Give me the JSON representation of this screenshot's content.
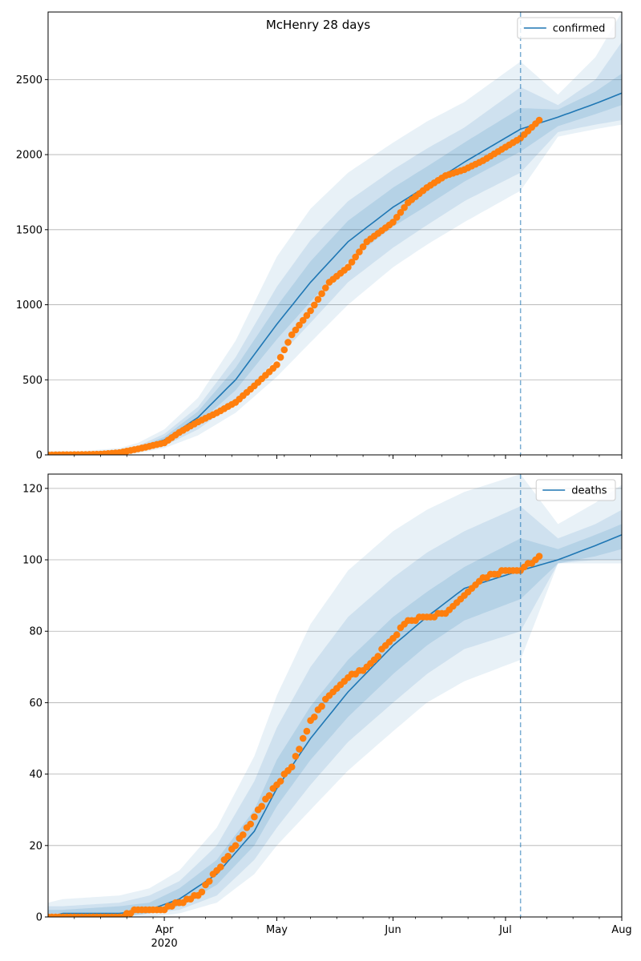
{
  "figure": {
    "title": "McHenry 28 days"
  },
  "chart_data": [
    {
      "type": "line",
      "panel": "top",
      "title": "McHenry 28 days",
      "xlabel": "",
      "ylabel": "",
      "xlim": [
        "2020-03-01",
        "2020-08-01"
      ],
      "ylim": [
        0,
        2950
      ],
      "yticks": [
        0,
        500,
        1000,
        1500,
        2000,
        2500
      ],
      "grid": "horizontal",
      "legend": {
        "position": "top-right",
        "entries": [
          "confirmed"
        ]
      },
      "forecast_start": "2020-07-05",
      "colors": {
        "line": "#1f77b4",
        "points": "#ff7f0e",
        "band": "#1f77b4",
        "divider": "#1f77b4"
      },
      "series": [
        {
          "name": "confirmed",
          "kind": "model-median",
          "x": [
            "2020-03-01",
            "2020-03-10",
            "2020-03-20",
            "2020-03-25",
            "2020-04-01",
            "2020-04-10",
            "2020-04-20",
            "2020-05-01",
            "2020-05-10",
            "2020-05-20",
            "2020-06-01",
            "2020-06-10",
            "2020-06-20",
            "2020-07-05",
            "2020-07-15",
            "2020-07-25",
            "2020-08-01"
          ],
          "values": [
            3,
            5,
            15,
            40,
            100,
            250,
            500,
            870,
            1150,
            1420,
            1650,
            1790,
            1950,
            2170,
            2250,
            2340,
            2410
          ]
        },
        {
          "name": "",
          "kind": "observed",
          "x": [
            "2020-03-01",
            "2020-03-10",
            "2020-03-15",
            "2020-03-20",
            "2020-03-25",
            "2020-04-01",
            "2020-04-05",
            "2020-04-10",
            "2020-04-15",
            "2020-04-20",
            "2020-04-25",
            "2020-05-01",
            "2020-05-05",
            "2020-05-10",
            "2020-05-15",
            "2020-05-20",
            "2020-05-25",
            "2020-06-01",
            "2020-06-05",
            "2020-06-10",
            "2020-06-15",
            "2020-06-20",
            "2020-06-25",
            "2020-07-01",
            "2020-07-05",
            "2020-07-10"
          ],
          "values": [
            0,
            2,
            5,
            15,
            40,
            80,
            150,
            220,
            280,
            350,
            460,
            600,
            800,
            960,
            1150,
            1250,
            1420,
            1550,
            1680,
            1780,
            1860,
            1900,
            1960,
            2050,
            2110,
            2230
          ]
        }
      ],
      "bands": [
        {
          "level": "outer",
          "lower": [
            0,
            0,
            3,
            12,
            45,
            130,
            280,
            520,
            750,
            1000,
            1250,
            1400,
            1550,
            1760,
            2120,
            2170,
            2200
          ],
          "upper": [
            25,
            25,
            45,
            80,
            170,
            380,
            760,
            1320,
            1640,
            1880,
            2080,
            2220,
            2350,
            2620,
            2400,
            2650,
            2950
          ]
        },
        {
          "level": "middle",
          "lower": [
            0,
            1,
            6,
            20,
            60,
            170,
            350,
            640,
            880,
            1150,
            1380,
            1530,
            1690,
            1880,
            2150,
            2200,
            2230
          ],
          "upper": [
            15,
            15,
            30,
            60,
            140,
            320,
            650,
            1120,
            1430,
            1690,
            1900,
            2040,
            2180,
            2450,
            2330,
            2500,
            2750
          ]
        },
        {
          "level": "inner",
          "lower": [
            1,
            3,
            10,
            30,
            80,
            210,
            430,
            770,
            1020,
            1290,
            1520,
            1660,
            1820,
            2020,
            2190,
            2270,
            2330
          ],
          "upper": [
            8,
            9,
            22,
            50,
            120,
            290,
            580,
            990,
            1290,
            1560,
            1780,
            1920,
            2080,
            2310,
            2300,
            2420,
            2540
          ]
        }
      ]
    },
    {
      "type": "line",
      "panel": "bottom",
      "xlabel": "",
      "ylabel": "",
      "xlim": [
        "2020-03-01",
        "2020-08-01"
      ],
      "ylim": [
        0,
        124
      ],
      "yticks": [
        0,
        20,
        40,
        60,
        80,
        100,
        120
      ],
      "xticks": [
        {
          "date": "2020-04-01",
          "label": "Apr",
          "sublabel": "2020"
        },
        {
          "date": "2020-05-01",
          "label": "May",
          "sublabel": ""
        },
        {
          "date": "2020-06-01",
          "label": "Jun",
          "sublabel": ""
        },
        {
          "date": "2020-07-01",
          "label": "Jul",
          "sublabel": ""
        },
        {
          "date": "2020-08-01",
          "label": "Aug",
          "sublabel": ""
        }
      ],
      "grid": "horizontal",
      "legend": {
        "position": "top-right",
        "entries": [
          "deaths"
        ]
      },
      "forecast_start": "2020-07-05",
      "colors": {
        "line": "#1f77b4",
        "points": "#ff7f0e",
        "band": "#1f77b4",
        "divider": "#1f77b4"
      },
      "series": [
        {
          "name": "deaths",
          "kind": "model-median",
          "x": [
            "2020-03-01",
            "2020-03-05",
            "2020-03-20",
            "2020-03-28",
            "2020-04-05",
            "2020-04-15",
            "2020-04-25",
            "2020-05-01",
            "2020-05-10",
            "2020-05-20",
            "2020-06-01",
            "2020-06-10",
            "2020-06-20",
            "2020-07-05",
            "2020-07-15",
            "2020-07-25",
            "2020-08-01"
          ],
          "values": [
            0,
            1,
            1,
            2,
            5,
            12,
            24,
            36,
            50,
            63,
            76,
            84,
            92,
            97,
            100,
            104,
            107
          ]
        },
        {
          "name": "",
          "kind": "observed",
          "x": [
            "2020-03-01",
            "2020-03-10",
            "2020-03-20",
            "2020-03-25",
            "2020-04-01",
            "2020-04-05",
            "2020-04-10",
            "2020-04-15",
            "2020-04-20",
            "2020-04-25",
            "2020-05-01",
            "2020-05-05",
            "2020-05-10",
            "2020-05-15",
            "2020-05-20",
            "2020-05-25",
            "2020-06-01",
            "2020-06-05",
            "2020-06-10",
            "2020-06-15",
            "2020-06-20",
            "2020-06-25",
            "2020-07-01",
            "2020-07-05",
            "2020-07-10"
          ],
          "values": [
            0,
            0,
            0,
            2,
            2,
            4,
            6,
            13,
            20,
            28,
            37,
            42,
            55,
            62,
            67,
            70,
            78,
            83,
            84,
            85,
            90,
            95,
            97,
            97,
            101
          ]
        }
      ],
      "bands": [
        {
          "level": "outer",
          "lower": [
            0,
            0,
            0,
            0,
            1,
            4,
            12,
            20,
            30,
            41,
            52,
            60,
            66,
            72,
            99,
            99,
            99
          ],
          "upper": [
            4,
            5,
            6,
            8,
            13,
            25,
            45,
            62,
            82,
            97,
            108,
            114,
            119,
            124,
            110,
            116,
            121
          ]
        },
        {
          "level": "middle",
          "lower": [
            0,
            0,
            0,
            1,
            2,
            6,
            16,
            25,
            37,
            49,
            60,
            68,
            75,
            80,
            99,
            100,
            100
          ],
          "upper": [
            3,
            3,
            4,
            6,
            10,
            20,
            38,
            53,
            70,
            84,
            95,
            102,
            108,
            115,
            106,
            110,
            114
          ]
        },
        {
          "level": "inner",
          "lower": [
            0,
            0,
            0,
            1,
            3,
            9,
            20,
            31,
            44,
            56,
            68,
            76,
            83,
            89,
            99,
            101,
            103
          ],
          "upper": [
            2,
            2,
            3,
            4,
            8,
            16,
            30,
            44,
            59,
            72,
            84,
            91,
            98,
            106,
            103,
            107,
            110
          ]
        }
      ]
    }
  ]
}
